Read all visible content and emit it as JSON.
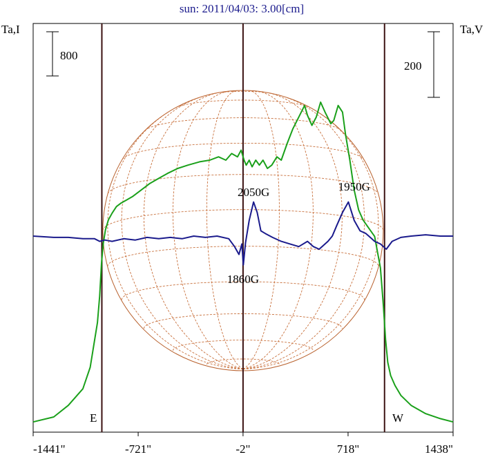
{
  "chart_data": {
    "type": "line",
    "title": "sun: 2011/04/03: 3.00[cm]",
    "left_axis_label": "Ta,I",
    "right_axis_label": "Ta,V",
    "left_scale_bar": "800",
    "right_scale_bar": "200",
    "x_tick_labels": [
      "-1441\"",
      "-721\"",
      "-2\"",
      "718\"",
      "1438\""
    ],
    "x_ticks": [
      -1441,
      -721,
      -2,
      718,
      1438
    ],
    "xlim": [
      -1441,
      1438
    ],
    "limb_labels": {
      "east": "E",
      "west": "W"
    },
    "limb_positions": [
      -970,
      968
    ],
    "center_line": -2,
    "annotations": [
      {
        "text": "2050G",
        "x": 70
      },
      {
        "text": "1950G",
        "x": 760
      },
      {
        "text": "1860G",
        "x": -2
      }
    ],
    "series": [
      {
        "name": "I",
        "color": "#1aa01a",
        "x": [
          -1441,
          -1300,
          -1200,
          -1100,
          -1050,
          -1000,
          -985,
          -972,
          -960,
          -945,
          -925,
          -900,
          -870,
          -840,
          -800,
          -760,
          -700,
          -640,
          -580,
          -520,
          -450,
          -380,
          -300,
          -230,
          -170,
          -120,
          -80,
          -40,
          -15,
          5,
          20,
          40,
          60,
          85,
          110,
          135,
          165,
          195,
          230,
          260,
          300,
          340,
          380,
          420,
          440,
          470,
          500,
          530,
          560,
          600,
          620,
          650,
          680,
          700,
          730,
          760,
          790,
          820,
          860,
          900,
          940,
          960,
          975,
          990,
          1010,
          1040,
          1080,
          1150,
          1250,
          1350,
          1438
        ],
        "y": [
          0.02,
          0.05,
          0.12,
          0.22,
          0.35,
          0.62,
          0.78,
          0.98,
          1.1,
          1.18,
          1.24,
          1.28,
          1.32,
          1.34,
          1.36,
          1.38,
          1.42,
          1.46,
          1.49,
          1.52,
          1.55,
          1.57,
          1.59,
          1.6,
          1.62,
          1.6,
          1.64,
          1.62,
          1.66,
          1.6,
          1.57,
          1.6,
          1.56,
          1.6,
          1.57,
          1.6,
          1.55,
          1.57,
          1.62,
          1.6,
          1.7,
          1.79,
          1.86,
          1.93,
          1.87,
          1.81,
          1.86,
          1.95,
          1.89,
          1.82,
          1.84,
          1.93,
          1.89,
          1.76,
          1.6,
          1.42,
          1.3,
          1.24,
          1.19,
          1.14,
          0.95,
          0.72,
          0.52,
          0.38,
          0.3,
          0.24,
          0.18,
          0.12,
          0.07,
          0.04,
          0.02
        ],
        "axis": "left"
      },
      {
        "name": "V",
        "color": "#1a1a8c",
        "x": [
          -1441,
          -1300,
          -1200,
          -1100,
          -1020,
          -985,
          -950,
          -900,
          -820,
          -740,
          -660,
          -580,
          -500,
          -420,
          -340,
          -260,
          -180,
          -100,
          -60,
          -30,
          -10,
          0,
          15,
          40,
          70,
          95,
          120,
          150,
          200,
          260,
          320,
          380,
          440,
          480,
          520,
          560,
          580,
          610,
          640,
          680,
          720,
          760,
          800,
          840,
          880,
          900,
          940,
          980,
          1020,
          1080,
          1150,
          1250,
          1350,
          1438
        ],
        "y": [
          0.0,
          -0.01,
          -0.01,
          -0.02,
          -0.02,
          -0.04,
          -0.03,
          -0.04,
          -0.02,
          -0.03,
          -0.01,
          -0.02,
          -0.01,
          -0.02,
          0.0,
          -0.01,
          0.0,
          -0.02,
          -0.08,
          -0.14,
          -0.06,
          -0.22,
          -0.05,
          0.12,
          0.26,
          0.18,
          0.04,
          0.02,
          -0.01,
          -0.04,
          -0.06,
          -0.08,
          -0.04,
          -0.08,
          -0.1,
          -0.06,
          -0.04,
          0.0,
          0.08,
          0.18,
          0.26,
          0.12,
          0.04,
          0.02,
          -0.02,
          -0.04,
          -0.06,
          -0.1,
          -0.04,
          -0.01,
          0.0,
          0.01,
          0.0,
          0.0
        ],
        "axis": "right"
      }
    ],
    "grid": false
  }
}
